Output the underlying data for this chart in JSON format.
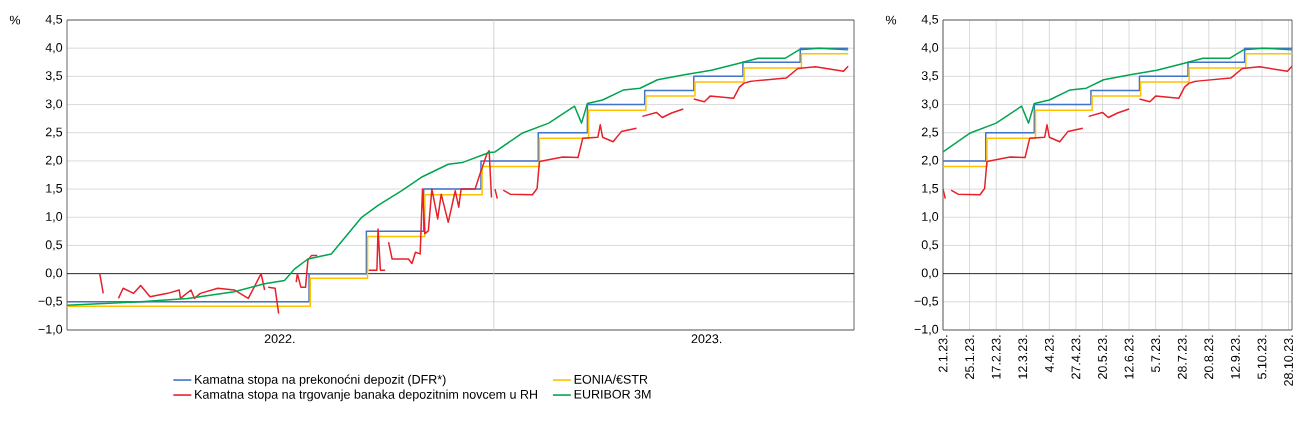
{
  "chart_data": [
    {
      "type": "line",
      "ylabel": "%",
      "xlim": [
        "2022-01-01",
        "2023-11-05"
      ],
      "ylim": [
        -1,
        4.5
      ],
      "xticks": [
        {
          "value": "2022-07-02",
          "label": "2022."
        },
        {
          "value": "2023-07-02",
          "label": "2023."
        }
      ],
      "yticks": [
        {
          "value": -1,
          "label": "−1,0"
        },
        {
          "value": -0.5,
          "label": "−0,5"
        },
        {
          "value": 0,
          "label": "0,0"
        },
        {
          "value": 0.5,
          "label": "0,5"
        },
        {
          "value": 1,
          "label": "1,0"
        },
        {
          "value": 1.5,
          "label": "1,5"
        },
        {
          "value": 2,
          "label": "2,0"
        },
        {
          "value": 2.5,
          "label": "2,5"
        },
        {
          "value": 3,
          "label": "3,0"
        },
        {
          "value": 3.5,
          "label": "3,5"
        },
        {
          "value": 4,
          "label": "4,0"
        },
        {
          "value": 4.5,
          "label": "4,5"
        }
      ],
      "grid": "y",
      "legend": "bottom",
      "ref_lines": [
        {
          "axis": "y",
          "value": 0,
          "color": "#000000"
        },
        {
          "axis": "x",
          "value": "2023-01-01",
          "color": "#c8c8c8"
        }
      ],
      "series": [
        {
          "name": "Kamatna stopa na prekonoćni depozit (DFR*)",
          "type": "step",
          "color": "#4472c4",
          "x": [
            "2022-01-01",
            "2022-07-27",
            "2022-09-14",
            "2022-11-02",
            "2022-12-21",
            "2023-02-08",
            "2023-03-22",
            "2023-05-10",
            "2023-06-21",
            "2023-08-02",
            "2023-09-20",
            "2023-10-31"
          ],
          "values": [
            -0.5,
            0.0,
            0.75,
            1.5,
            2.0,
            2.5,
            3.0,
            3.25,
            3.5,
            3.75,
            4.0,
            4.0
          ]
        },
        {
          "name": "EONIA/€STR",
          "type": "step",
          "color": "#ffc000",
          "x": [
            "2022-01-01",
            "2022-07-28",
            "2022-09-15",
            "2022-11-03",
            "2022-12-22",
            "2023-02-09",
            "2023-03-23",
            "2023-05-11",
            "2023-06-22",
            "2023-08-03",
            "2023-09-21",
            "2023-10-31"
          ],
          "values": [
            -0.58,
            -0.08,
            0.66,
            1.4,
            1.9,
            2.4,
            2.9,
            3.15,
            3.4,
            3.65,
            3.9,
            3.9
          ]
        },
        {
          "name": "Kamatna stopa na trgovanje banaka depozitnim novcem u RH",
          "color": "#e8202a",
          "x": [
            "2022-01-29",
            "2022-02-01",
            "2022-02-08",
            "2022-02-14",
            "2022-02-18",
            "2022-02-27",
            "2022-03-05",
            "2022-03-13",
            "2022-03-28",
            "2022-04-07",
            "2022-04-08",
            "2022-04-17",
            "2022-04-20",
            "2022-04-25",
            "2022-05-10",
            "2022-05-24",
            "2022-06-05",
            "2022-06-16",
            "2022-06-19",
            "2022-06-20",
            "2022-06-22",
            "2022-06-28",
            "2022-07-01",
            "2022-07-08",
            "2022-07-16",
            "2022-07-17",
            "2022-07-20",
            "2022-07-24",
            "2022-07-26",
            "2022-07-29",
            "2022-08-03",
            "2022-08-15",
            "2022-09-16",
            "2022-09-23",
            "2022-09-24",
            "2022-09-26",
            "2022-09-30",
            "2022-10-01",
            "2022-10-03",
            "2022-10-06",
            "2022-10-20",
            "2022-10-23",
            "2022-10-26",
            "2022-10-30",
            "2022-11-01",
            "2022-11-03",
            "2022-11-06",
            "2022-11-09",
            "2022-11-14",
            "2022-11-17",
            "2022-11-23",
            "2022-11-29",
            "2022-12-02",
            "2022-12-04",
            "2022-12-16",
            "2022-12-20",
            "2022-12-26",
            "2022-12-28",
            "2022-12-30",
            "2022-12-31",
            "2023-01-02",
            "2023-01-04",
            "2023-01-06",
            "2023-01-09",
            "2023-01-15",
            "2023-02-03",
            "2023-02-07",
            "2023-02-09",
            "2023-03-01",
            "2023-03-14",
            "2023-03-18",
            "2023-03-31",
            "2023-04-02",
            "2023-04-04",
            "2023-04-13",
            "2023-04-20",
            "2023-05-03",
            "2023-05-05",
            "2023-05-08",
            "2023-05-20",
            "2023-05-25",
            "2023-06-02",
            "2023-06-12",
            "2023-06-16",
            "2023-06-21",
            "2023-06-30",
            "2023-07-05",
            "2023-07-25",
            "2023-07-30",
            "2023-08-03",
            "2023-08-08",
            "2023-08-12",
            "2023-09-08",
            "2023-09-18",
            "2023-10-03",
            "2023-10-27",
            "2023-10-31"
          ],
          "values": [
            0.0,
            -0.35,
            null,
            -0.44,
            -0.26,
            -0.35,
            -0.21,
            -0.41,
            -0.35,
            -0.29,
            -0.44,
            -0.29,
            -0.44,
            -0.35,
            -0.26,
            -0.29,
            -0.44,
            0.0,
            -0.29,
            null,
            -0.24,
            -0.26,
            -0.71,
            null,
            -0.15,
            0.0,
            -0.24,
            -0.24,
            0.24,
            0.32,
            0.32,
            null,
            0.06,
            0.06,
            0.79,
            0.06,
            0.06,
            null,
            0.56,
            0.26,
            0.26,
            0.18,
            0.38,
            0.35,
            1.5,
            0.71,
            0.76,
            1.5,
            0.97,
            1.41,
            0.91,
            1.47,
            1.18,
            1.5,
            1.5,
            1.76,
            2.12,
            2.18,
            1.35,
            null,
            1.5,
            1.33,
            null,
            1.48,
            1.41,
            1.4,
            1.51,
            1.99,
            2.07,
            2.06,
            2.4,
            2.42,
            2.64,
            2.42,
            2.34,
            2.52,
            2.58,
            null,
            2.79,
            2.86,
            2.77,
            2.85,
            2.92,
            null,
            3.1,
            3.05,
            3.15,
            3.11,
            3.31,
            3.38,
            3.41,
            3.42,
            3.47,
            3.64,
            3.67,
            3.59,
            3.68
          ]
        },
        {
          "name": "EURIBOR 3M",
          "color": "#00a550",
          "x": [
            "2022-01-01",
            "2022-03-05",
            "2022-04-14",
            "2022-05-24",
            "2022-06-19",
            "2022-07-06",
            "2022-07-15",
            "2022-07-26",
            "2022-08-15",
            "2022-09-10",
            "2022-09-24",
            "2022-10-14",
            "2022-10-31",
            "2022-11-23",
            "2022-12-05",
            "2022-12-28",
            "2023-01-02",
            "2023-01-25",
            "2023-02-17",
            "2023-03-11",
            "2023-03-17",
            "2023-03-22",
            "2023-04-04",
            "2023-04-22",
            "2023-05-06",
            "2023-05-21",
            "2023-06-13",
            "2023-07-06",
            "2023-07-29",
            "2023-08-15",
            "2023-09-07",
            "2023-09-19",
            "2023-10-06",
            "2023-10-31"
          ],
          "values": [
            -0.56,
            -0.5,
            -0.44,
            -0.32,
            -0.18,
            -0.12,
            0.09,
            0.26,
            0.35,
            1.0,
            1.21,
            1.47,
            1.71,
            1.94,
            1.97,
            2.15,
            2.16,
            2.49,
            2.67,
            2.97,
            2.67,
            3.02,
            3.08,
            3.26,
            3.29,
            3.44,
            3.53,
            3.61,
            3.73,
            3.82,
            3.82,
            3.97,
            4.0,
            3.97
          ]
        }
      ]
    },
    {
      "type": "line",
      "ylabel": "%",
      "xlim": [
        "2023-01-02",
        "2023-10-31"
      ],
      "ylim": [
        -1,
        4.5
      ],
      "xticks": [
        {
          "value": "2023-01-02",
          "label": "2.1.23."
        },
        {
          "value": "2023-01-25",
          "label": "25.1.23."
        },
        {
          "value": "2023-02-17",
          "label": "17.2.23."
        },
        {
          "value": "2023-03-12",
          "label": "12.3.23."
        },
        {
          "value": "2023-04-04",
          "label": "4.4.23."
        },
        {
          "value": "2023-04-27",
          "label": "27.4.23."
        },
        {
          "value": "2023-05-20",
          "label": "20.5.23."
        },
        {
          "value": "2023-06-12",
          "label": "12.6.23."
        },
        {
          "value": "2023-07-05",
          "label": "5.7.23."
        },
        {
          "value": "2023-07-28",
          "label": "28.7.23."
        },
        {
          "value": "2023-08-20",
          "label": "20.8.23."
        },
        {
          "value": "2023-09-12",
          "label": "12.9.23."
        },
        {
          "value": "2023-10-05",
          "label": "5.10.23."
        },
        {
          "value": "2023-10-28",
          "label": "28.10.23."
        }
      ],
      "yticks": [
        {
          "value": -1,
          "label": "−1,0"
        },
        {
          "value": -0.5,
          "label": "−0,5"
        },
        {
          "value": 0,
          "label": "0,0"
        },
        {
          "value": 0.5,
          "label": "0,5"
        },
        {
          "value": 1,
          "label": "1,0"
        },
        {
          "value": 1.5,
          "label": "1,5"
        },
        {
          "value": 2,
          "label": "2,0"
        },
        {
          "value": 2.5,
          "label": "2,5"
        },
        {
          "value": 3,
          "label": "3,0"
        },
        {
          "value": 3.5,
          "label": "3,5"
        },
        {
          "value": 4,
          "label": "4,0"
        },
        {
          "value": 4.5,
          "label": "4,5"
        }
      ],
      "grid": true,
      "ref_lines": [
        {
          "axis": "y",
          "value": 0,
          "color": "#000000"
        }
      ],
      "series": [
        {
          "type": "step",
          "color": "#4472c4",
          "x": [
            "2023-01-02",
            "2023-02-08",
            "2023-03-22",
            "2023-05-10",
            "2023-06-21",
            "2023-08-02",
            "2023-09-20",
            "2023-10-31"
          ],
          "values": [
            2.0,
            2.5,
            3.0,
            3.25,
            3.5,
            3.75,
            4.0,
            4.0
          ]
        },
        {
          "type": "step",
          "color": "#ffc000",
          "x": [
            "2023-01-02",
            "2023-02-09",
            "2023-03-23",
            "2023-05-11",
            "2023-06-22",
            "2023-08-03",
            "2023-09-21",
            "2023-10-31"
          ],
          "values": [
            1.9,
            2.4,
            2.9,
            3.15,
            3.4,
            3.65,
            3.9,
            3.9
          ]
        },
        {
          "color": "#e8202a",
          "x": [
            "2023-01-02",
            "2023-01-04",
            "2023-01-06",
            "2023-01-09",
            "2023-01-15",
            "2023-02-03",
            "2023-02-07",
            "2023-02-09",
            "2023-03-01",
            "2023-03-14",
            "2023-03-18",
            "2023-03-31",
            "2023-04-02",
            "2023-04-04",
            "2023-04-13",
            "2023-04-20",
            "2023-05-03",
            "2023-05-05",
            "2023-05-08",
            "2023-05-20",
            "2023-05-25",
            "2023-06-02",
            "2023-06-12",
            "2023-06-16",
            "2023-06-21",
            "2023-06-30",
            "2023-07-05",
            "2023-07-25",
            "2023-07-30",
            "2023-08-03",
            "2023-08-08",
            "2023-08-12",
            "2023-09-08",
            "2023-09-18",
            "2023-10-03",
            "2023-10-27",
            "2023-10-31"
          ],
          "values": [
            1.5,
            1.33,
            null,
            1.48,
            1.41,
            1.4,
            1.51,
            1.99,
            2.07,
            2.06,
            2.4,
            2.42,
            2.64,
            2.42,
            2.34,
            2.52,
            2.58,
            null,
            2.79,
            2.86,
            2.77,
            2.85,
            2.92,
            null,
            3.1,
            3.05,
            3.15,
            3.11,
            3.31,
            3.38,
            3.41,
            3.42,
            3.47,
            3.64,
            3.67,
            3.59,
            3.68
          ]
        },
        {
          "color": "#00a550",
          "x": [
            "2023-01-02",
            "2023-01-25",
            "2023-02-17",
            "2023-03-11",
            "2023-03-17",
            "2023-03-22",
            "2023-04-04",
            "2023-04-22",
            "2023-05-06",
            "2023-05-21",
            "2023-06-13",
            "2023-07-06",
            "2023-07-29",
            "2023-08-15",
            "2023-09-07",
            "2023-09-19",
            "2023-10-06",
            "2023-10-31"
          ],
          "values": [
            2.16,
            2.49,
            2.67,
            2.97,
            2.67,
            3.02,
            3.08,
            3.26,
            3.29,
            3.44,
            3.53,
            3.61,
            3.73,
            3.82,
            3.82,
            3.97,
            4.0,
            3.97
          ]
        }
      ]
    }
  ]
}
